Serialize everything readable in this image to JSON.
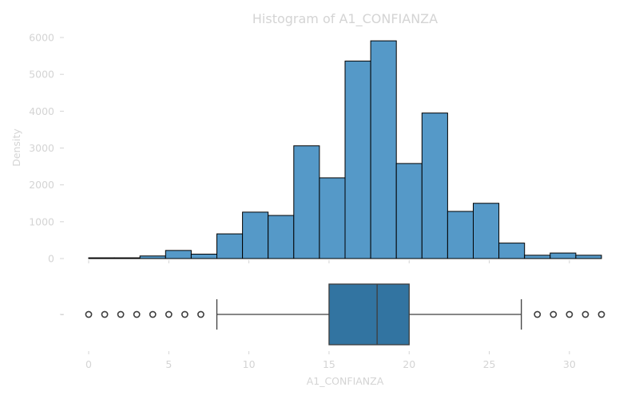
{
  "chart_data": [
    {
      "type": "bar",
      "subtype": "histogram",
      "title": "Histogram of A1_CONFIANZA",
      "xlabel": "",
      "ylabel": "Density",
      "ylim": [
        0,
        6000
      ],
      "xlim": [
        0,
        32
      ],
      "yticks": [
        "0",
        "1000",
        "2000",
        "3000",
        "4000",
        "5000",
        "6000"
      ],
      "bin_edges": [
        0,
        1.6,
        3.2,
        4.8,
        6.4,
        8.0,
        9.6,
        11.2,
        12.8,
        14.4,
        16.0,
        17.6,
        19.2,
        20.8,
        22.4,
        24.0,
        25.6,
        27.2,
        28.8,
        30.4,
        32.0
      ],
      "values": [
        20,
        20,
        70,
        220,
        120,
        670,
        1260,
        1170,
        3060,
        2190,
        5360,
        5910,
        2580,
        3950,
        1280,
        1500,
        420,
        90,
        150,
        90
      ],
      "bar_color": "#5599c8",
      "edge_color": "#000000",
      "grid": false
    },
    {
      "type": "boxplot",
      "xlabel": "A1_CONFIANZA",
      "ylabel_tick": "-",
      "xticks": [
        "0",
        "5",
        "10",
        "15",
        "20",
        "25",
        "30"
      ],
      "xlim": [
        0,
        32
      ],
      "q1": 15,
      "median": 18,
      "q3": 20,
      "whisker_low": 8,
      "whisker_high": 27,
      "outliers": [
        0,
        1,
        2,
        3,
        4,
        5,
        6,
        7,
        28,
        29,
        30,
        31,
        32
      ],
      "box_color": "#3274a1"
    }
  ]
}
